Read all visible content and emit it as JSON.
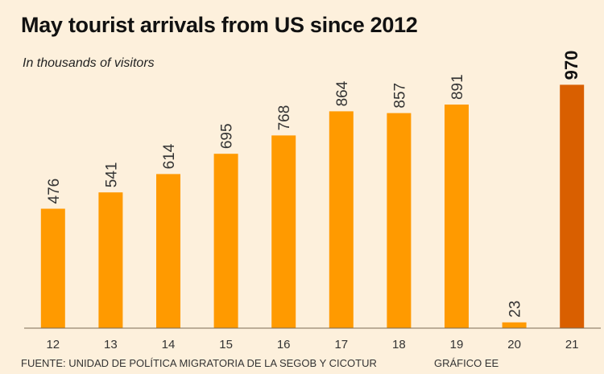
{
  "chart_data": {
    "type": "bar",
    "title": "May tourist arrivals from US since 2012",
    "subtitle": "In thousands of visitors",
    "categories": [
      "12",
      "13",
      "14",
      "15",
      "16",
      "17",
      "18",
      "19",
      "20",
      "21"
    ],
    "values": [
      476,
      541,
      614,
      695,
      768,
      864,
      857,
      891,
      23,
      970
    ],
    "highlight_index": 9,
    "ylim": [
      0,
      1000
    ],
    "grid": false,
    "colors": {
      "bar": "#ff9a00",
      "highlight": "#d95f00",
      "background": "#fdf0dc",
      "axis": "#7a6a55"
    }
  },
  "footer": {
    "source": "FUENTE: UNIDAD DE POLÍTICA MIGRATORIA DE LA SEGOB Y CICOTUR",
    "credit": "GRÁFICO EE"
  }
}
